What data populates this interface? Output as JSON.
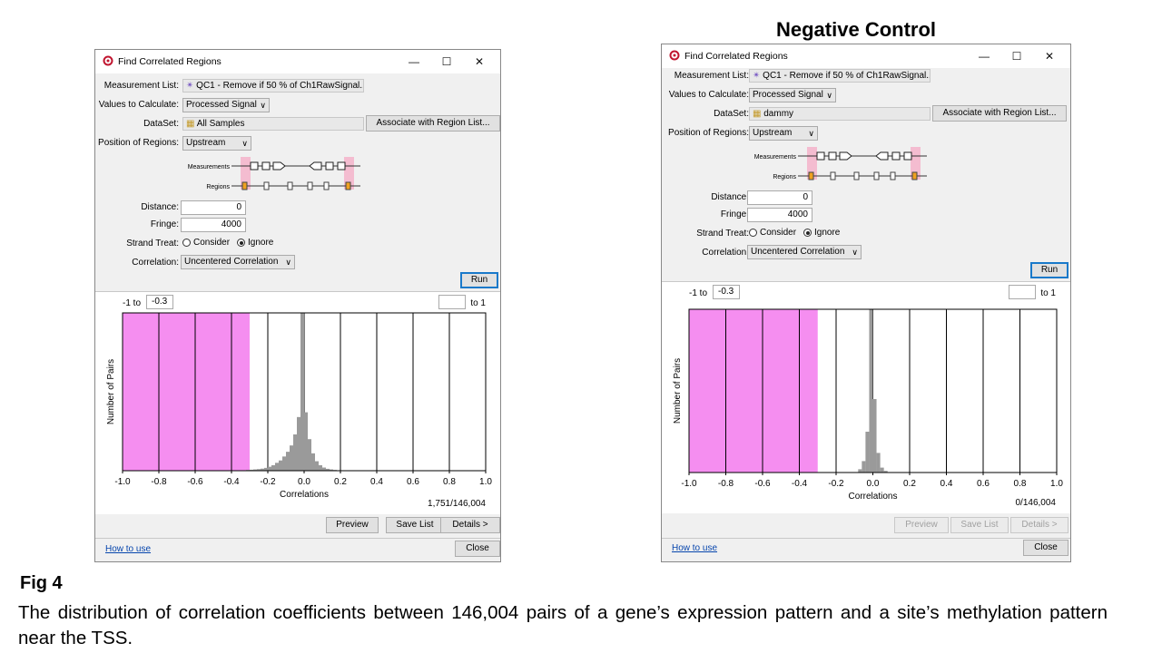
{
  "heading": "Negative Control",
  "figure": {
    "label": "Fig 4",
    "caption": "The distribution of correlation coefficients between 146,004 pairs of a gene’s expression pattern and a site’s methylation pattern near the TSS."
  },
  "colors": {
    "highlight": "#f58ef0",
    "bar": "#9a9a9a",
    "link": "#0645ad",
    "run_border": "#1979ca"
  },
  "dialogs": [
    {
      "title": "Find Correlated Regions",
      "measurement_list_label": "Measurement List:",
      "measurement_list": "QC1 - Remove if 50 % of Ch1RawSignal...",
      "values_label": "Values to Calculate:",
      "values": "Processed Signal",
      "dataset_label": "DataSet:",
      "dataset": "All Samples",
      "associate_button": "Associate with Region List...",
      "position_label": "Position of Regions:",
      "position": "Upstream",
      "diagram_measurements": "Measurements",
      "diagram_regions": "Regions",
      "distance_label": "Distance:",
      "distance": "0",
      "fringe_label": "Fringe:",
      "fringe": "4000",
      "strand_label": "Strand Treat:",
      "strand_options": [
        "Consider",
        "Ignore"
      ],
      "strand_selected": "Ignore",
      "correlation_label": "Correlation:",
      "correlation": "Uncentered Correlation",
      "run_button": "Run",
      "range_low_prefix": "-1 to",
      "range_low_value": "-0.3",
      "range_high_value": "",
      "range_high_suffix": "to 1",
      "count": "1,751/146,004",
      "buttons": {
        "preview": "Preview",
        "save_list": "Save List",
        "details": "Details >",
        "close": "Close"
      },
      "buttons_enabled": true,
      "how_to_use": "How to use",
      "chart_data": {
        "type": "bar",
        "title": "",
        "xlabel": "Correlations",
        "ylabel": "Number of Pairs",
        "xlim": [
          -1.0,
          1.0
        ],
        "ylim": [
          0,
          100
        ],
        "xticks": [
          "-1.0",
          "-0.8",
          "-0.6",
          "-0.4",
          "-0.2",
          "0.0",
          "0.2",
          "0.4",
          "0.6",
          "0.8",
          "1.0"
        ],
        "highlight_range": [
          -1.0,
          -0.3
        ],
        "x": [
          -0.31,
          -0.29,
          -0.27,
          -0.25,
          -0.23,
          -0.21,
          -0.19,
          -0.17,
          -0.15,
          -0.13,
          -0.11,
          -0.09,
          -0.07,
          -0.05,
          -0.03,
          -0.01,
          0.01,
          0.03,
          0.05,
          0.07,
          0.09,
          0.11,
          0.13,
          0.15,
          0.17,
          0.19
        ],
        "values": [
          0.5,
          0.6,
          0.8,
          1,
          1.3,
          1.8,
          2.5,
          3.5,
          5,
          6.5,
          9,
          12,
          16,
          23,
          34,
          100,
          37,
          20,
          11,
          6,
          3.5,
          2,
          1.2,
          0.8,
          0.5,
          0.3
        ]
      }
    },
    {
      "title": "Find Correlated Regions",
      "measurement_list_label": "Measurement List:",
      "measurement_list": "QC1 - Remove if 50 % of Ch1RawSignal...",
      "values_label": "Values to Calculate:",
      "values": "Processed Signal",
      "dataset_label": "DataSet:",
      "dataset": "dammy",
      "associate_button": "Associate with Region List...",
      "position_label": "Position of Regions:",
      "position": "Upstream",
      "diagram_measurements": "Measurements",
      "diagram_regions": "Regions",
      "distance_label": "Distance:",
      "distance": "0",
      "fringe_label": "Fringe:",
      "fringe": "4000",
      "strand_label": "Strand Treat:",
      "strand_options": [
        "Consider",
        "Ignore"
      ],
      "strand_selected": "Ignore",
      "correlation_label": "Correlation:",
      "correlation": "Uncentered Correlation",
      "run_button": "Run",
      "range_low_prefix": "-1 to",
      "range_low_value": "-0.3",
      "range_high_value": "",
      "range_high_suffix": "to 1",
      "count": "0/146,004",
      "buttons": {
        "preview": "Preview",
        "save_list": "Save List",
        "details": "Details >",
        "close": "Close"
      },
      "buttons_enabled": false,
      "how_to_use": "How to use",
      "chart_data": {
        "type": "bar",
        "title": "",
        "xlabel": "Correlations",
        "ylabel": "Number of Pairs",
        "xlim": [
          -1.0,
          1.0
        ],
        "ylim": [
          0,
          100
        ],
        "xticks": [
          "-1.0",
          "-0.8",
          "-0.6",
          "-0.4",
          "-0.2",
          "0.0",
          "0.2",
          "0.4",
          "0.6",
          "0.8",
          "1.0"
        ],
        "highlight_range": [
          -1.0,
          -0.3
        ],
        "x": [
          -0.07,
          -0.05,
          -0.03,
          -0.01,
          0.01,
          0.03,
          0.05,
          0.07
        ],
        "values": [
          2,
          7,
          25,
          100,
          45,
          12,
          3,
          1
        ]
      }
    }
  ]
}
